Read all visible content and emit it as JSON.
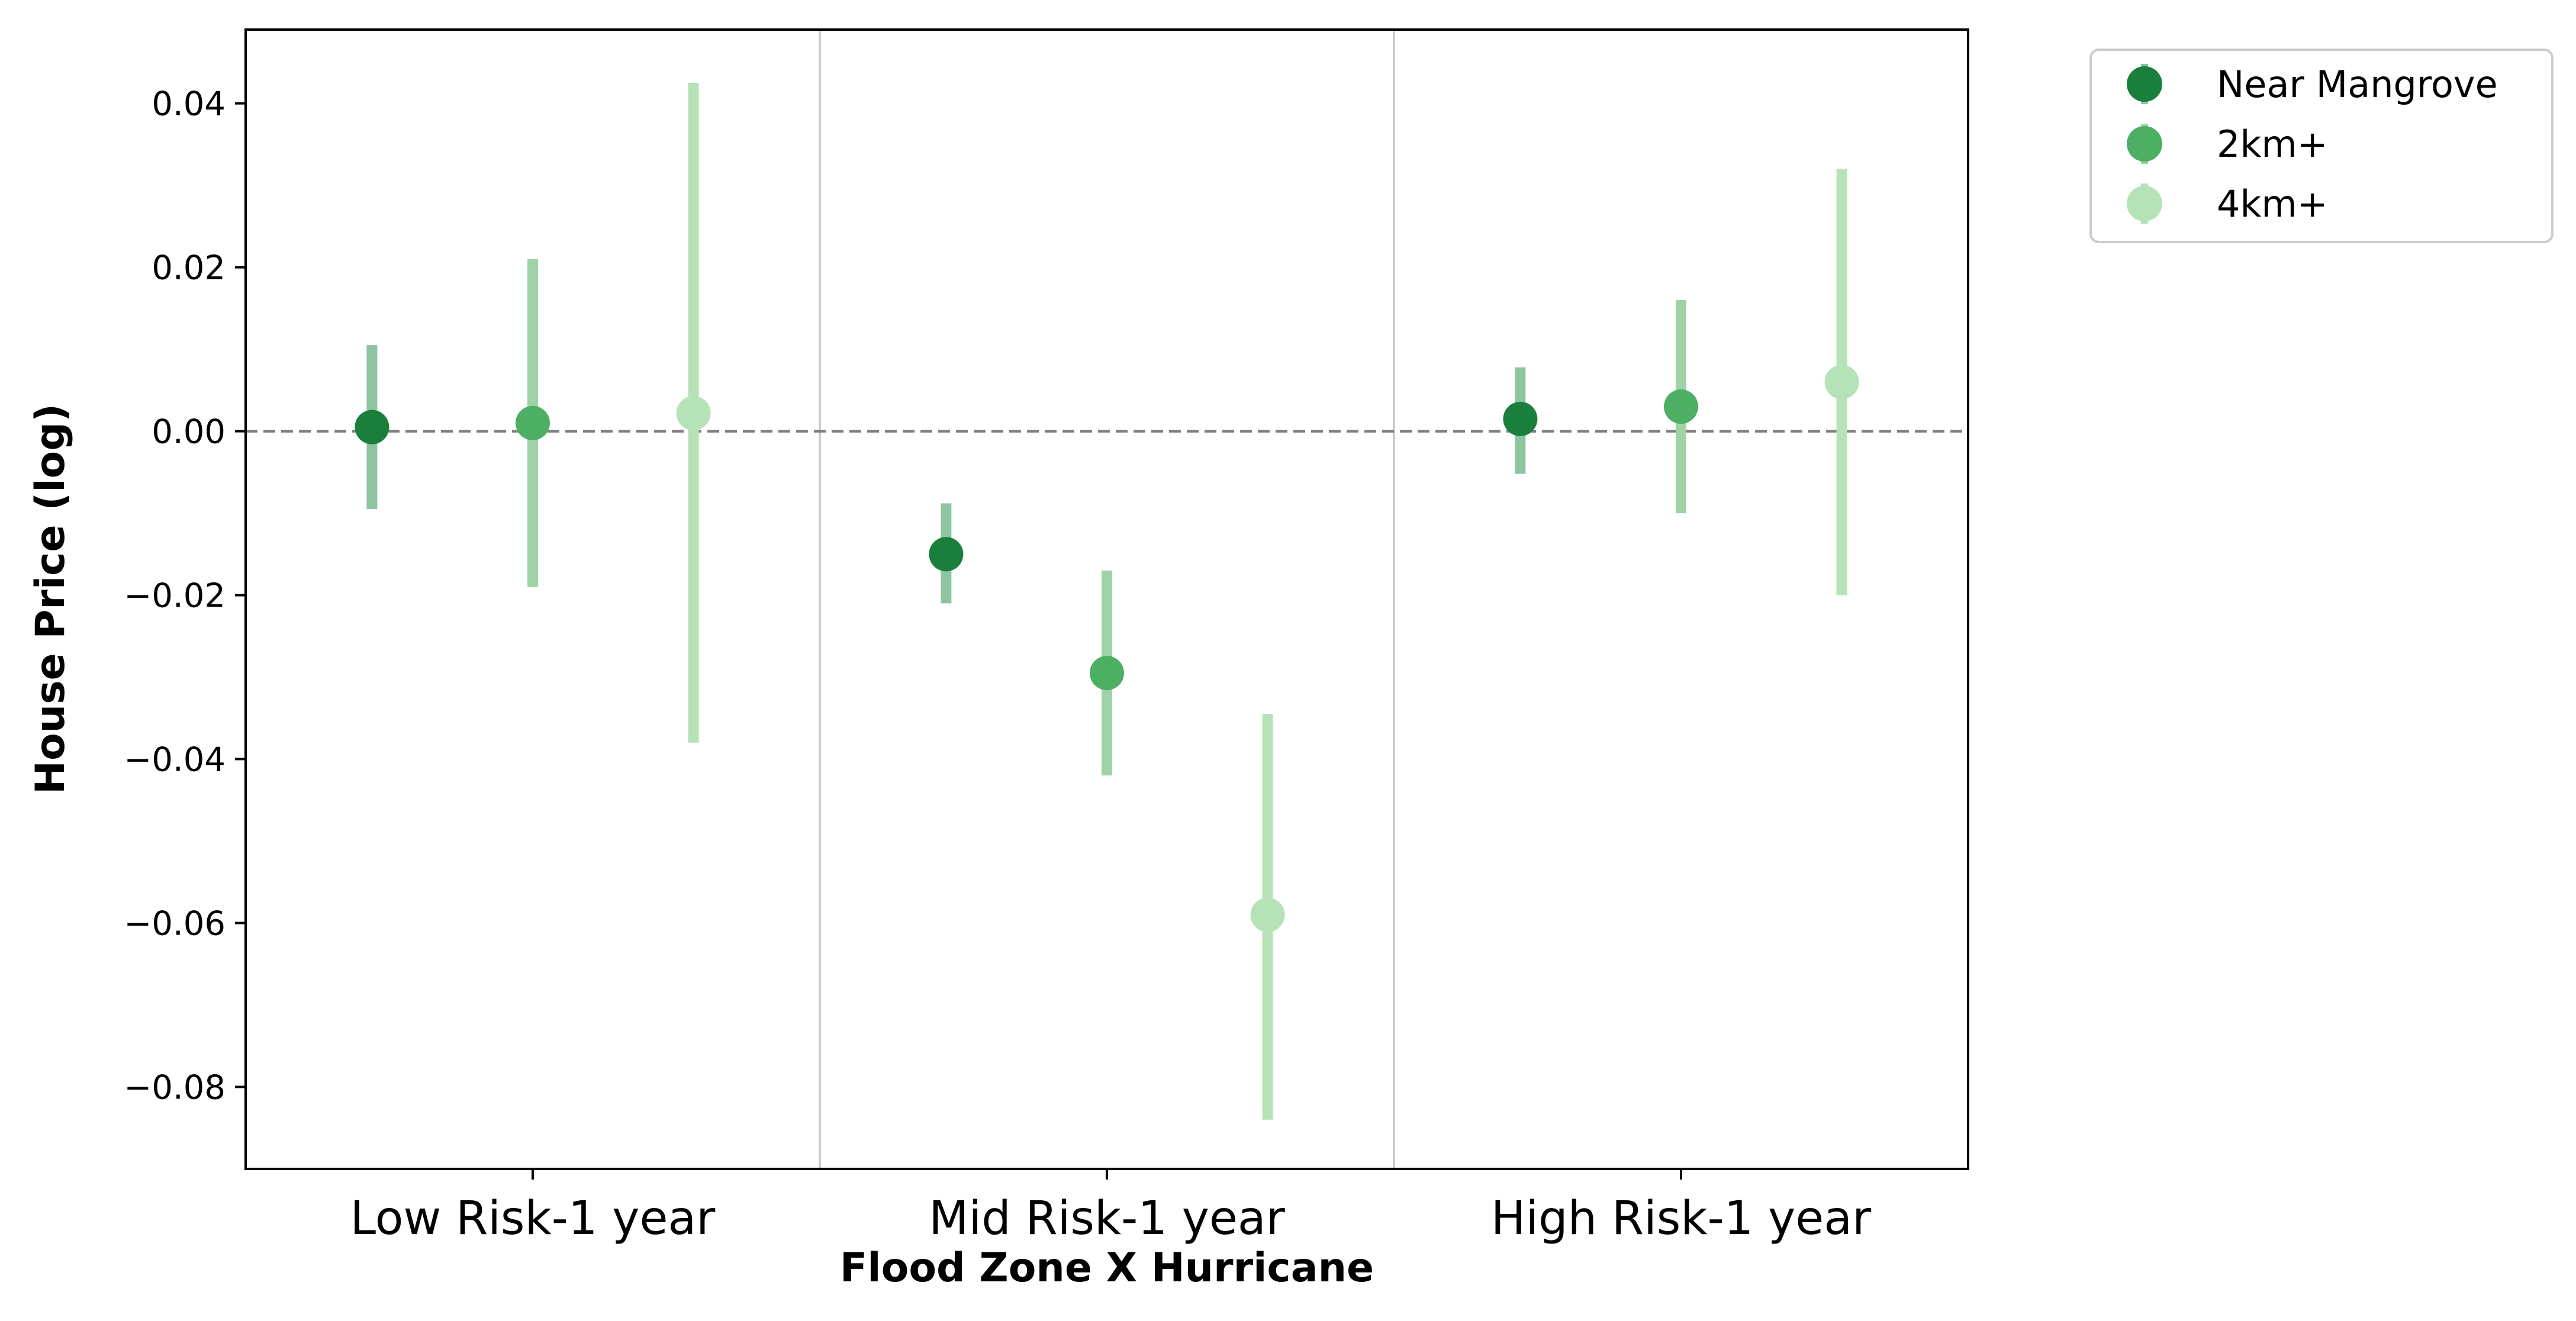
{
  "chart_data": {
    "type": "scatter",
    "title": "",
    "xlabel": "Flood Zone X Hurricane",
    "ylabel": "House Price (log)",
    "categories": [
      "Low Risk-1 year",
      "Mid Risk-1 year",
      "High Risk-1 year"
    ],
    "ylim": [
      -0.09,
      0.049
    ],
    "yticks": [
      0.04,
      0.02,
      0.0,
      -0.02,
      -0.04,
      -0.06,
      -0.08
    ],
    "ytick_labels": [
      "0.04",
      "0.02",
      "0.00",
      "−0.02",
      "−0.04",
      "−0.06",
      "−0.08"
    ],
    "reference_line": {
      "y": 0,
      "style": "dashed",
      "color": "#808080"
    },
    "grid": false,
    "legend_position": "outside-top-right",
    "series": [
      {
        "name": "Near Mangrove",
        "color": "#1a7f3c",
        "bar_color": "#8fc4a0",
        "values": [
          0.0005,
          -0.015,
          0.0015
        ],
        "ci_low": [
          -0.0095,
          -0.021,
          -0.0052
        ],
        "ci_high": [
          0.0105,
          -0.0088,
          0.0078
        ]
      },
      {
        "name": "2km+",
        "color": "#4caf63",
        "bar_color": "#9fd3a7",
        "values": [
          0.001,
          -0.0295,
          0.003
        ],
        "ci_low": [
          -0.019,
          -0.042,
          -0.01
        ],
        "ci_high": [
          0.021,
          -0.017,
          0.016
        ]
      },
      {
        "name": "4km+",
        "color": "#b5e3b7",
        "bar_color": "#b5e3b7",
        "values": [
          0.0022,
          -0.059,
          0.006
        ],
        "ci_low": [
          -0.038,
          -0.084,
          -0.02
        ],
        "ci_high": [
          0.0425,
          -0.0345,
          0.032
        ]
      }
    ]
  }
}
